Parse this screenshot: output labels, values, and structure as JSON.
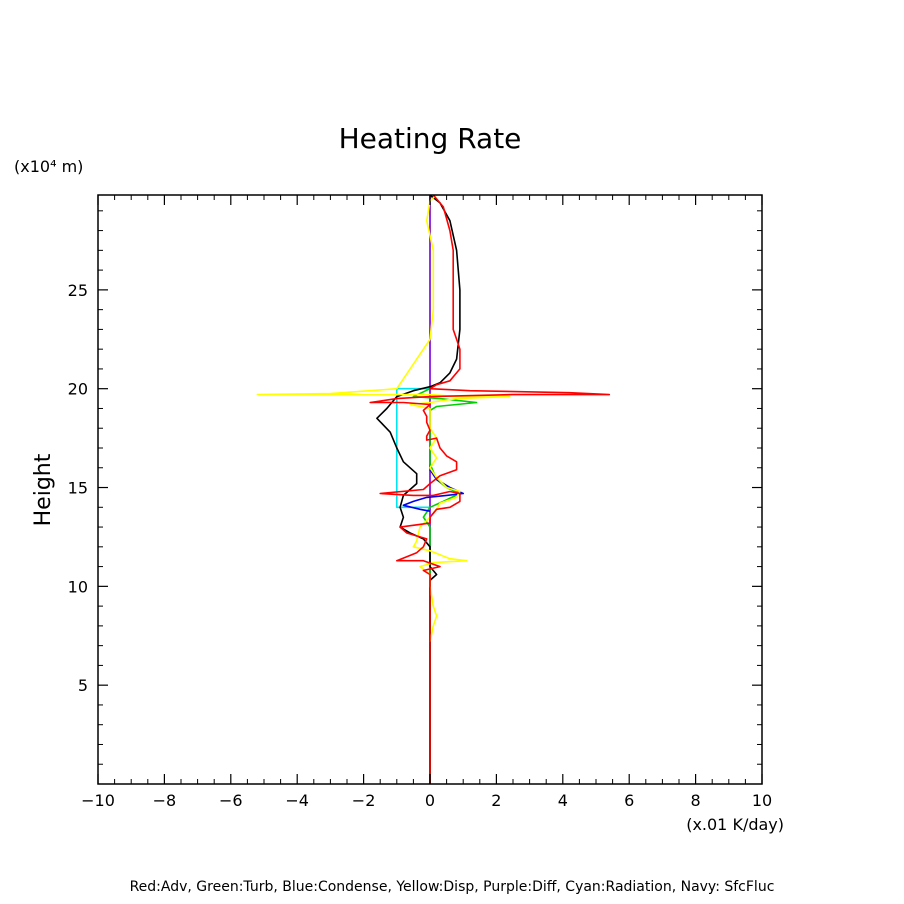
{
  "chart_data": {
    "type": "line",
    "title": "Heating Rate",
    "xlabel": "(x.01 K/day)",
    "ylabel": "Height",
    "yunit_label": "(x10⁴ m)",
    "caption": "Red:Adv, Green:Turb, Blue:Condense, Yellow:Disp, Purple:Diff, Cyan:Radiation, Navy: SfcFluc",
    "xlim": [
      -10,
      10
    ],
    "ylim": [
      0,
      29.8
    ],
    "xticks": [
      -10,
      -8,
      -6,
      -4,
      -2,
      0,
      2,
      4,
      6,
      8,
      10
    ],
    "xtick_labels": [
      "−10",
      "−8",
      "−6",
      "−4",
      "−2",
      "0",
      "2",
      "4",
      "6",
      "8",
      "10"
    ],
    "yticks": [
      5,
      10,
      15,
      20,
      25
    ],
    "ytick_labels": [
      "5",
      "10",
      "15",
      "20",
      "25"
    ],
    "grid": false,
    "series": [
      {
        "name": "Navy: SfcFluc",
        "color": "#000080",
        "points": [
          [
            0,
            0
          ],
          [
            0,
            29.8
          ]
        ]
      },
      {
        "name": "Purple:Diff",
        "color": "#a020f0",
        "points": [
          [
            0.05,
            29.8
          ],
          [
            0,
            29.6
          ],
          [
            0,
            0
          ]
        ]
      },
      {
        "name": "Cyan:Radiation",
        "color": "#00e5ee",
        "points": [
          [
            0,
            20
          ],
          [
            -1.0,
            20
          ],
          [
            -1.0,
            14.0
          ],
          [
            -0.3,
            14.0
          ],
          [
            0,
            14.0
          ]
        ]
      },
      {
        "name": "Green:Turb",
        "color": "#00d000",
        "points": [
          [
            0,
            20.0
          ],
          [
            -0.5,
            19.6
          ],
          [
            0.3,
            19.5
          ],
          [
            1.4,
            19.3
          ],
          [
            0.2,
            19.1
          ],
          [
            0,
            18.9
          ],
          [
            0,
            16.2
          ],
          [
            0.2,
            15.4
          ],
          [
            0.5,
            15.0
          ],
          [
            0.9,
            14.7
          ],
          [
            0.4,
            14.3
          ],
          [
            0.0,
            14.0
          ],
          [
            -0.2,
            13.5
          ],
          [
            0,
            13.0
          ],
          [
            0,
            0
          ]
        ]
      },
      {
        "name": "Blue:Condense",
        "color": "#0000ee",
        "points": [
          [
            0,
            15.9
          ],
          [
            0.2,
            15.4
          ],
          [
            0.6,
            15.0
          ],
          [
            1.0,
            14.7
          ],
          [
            0.5,
            14.6
          ],
          [
            -0.1,
            14.5
          ],
          [
            -0.5,
            14.3
          ],
          [
            -0.8,
            14.1
          ],
          [
            -0.3,
            13.9
          ],
          [
            0,
            13.8
          ]
        ]
      },
      {
        "name": "Black",
        "color": "#000000",
        "points": [
          [
            0,
            29.8
          ],
          [
            0.3,
            29.4
          ],
          [
            0.6,
            28.5
          ],
          [
            0.8,
            27.0
          ],
          [
            0.9,
            25.0
          ],
          [
            0.9,
            23.0
          ],
          [
            0.8,
            21.5
          ],
          [
            0.6,
            20.8
          ],
          [
            0.3,
            20.3
          ],
          [
            0,
            20.1
          ],
          [
            -0.5,
            19.9
          ],
          [
            -1.0,
            19.6
          ],
          [
            -1.3,
            19.0
          ],
          [
            -1.6,
            18.5
          ],
          [
            -1.2,
            17.8
          ],
          [
            -1.0,
            17.0
          ],
          [
            -0.8,
            16.3
          ],
          [
            -0.4,
            15.7
          ],
          [
            -0.4,
            15.2
          ],
          [
            -0.8,
            14.6
          ],
          [
            -0.9,
            14.0
          ],
          [
            -0.8,
            13.5
          ],
          [
            -0.9,
            13.0
          ],
          [
            -0.6,
            12.7
          ],
          [
            -0.2,
            12.4
          ],
          [
            0,
            12.0
          ],
          [
            0,
            11.0
          ],
          [
            0.2,
            10.6
          ],
          [
            0,
            10.3
          ],
          [
            0,
            0
          ]
        ]
      },
      {
        "name": "Yellow:Disp",
        "color": "#ffff00",
        "points": [
          [
            0.2,
            29.8
          ],
          [
            0,
            29.5
          ],
          [
            -0.1,
            28.5
          ],
          [
            0.1,
            27.0
          ],
          [
            0.1,
            25.0
          ],
          [
            0.1,
            24.0
          ],
          [
            0,
            22.5
          ],
          [
            -0.4,
            21.5
          ],
          [
            -0.8,
            20.5
          ],
          [
            -1.0,
            20.0
          ],
          [
            -3.0,
            19.75
          ],
          [
            -5.2,
            19.7
          ],
          [
            -2.5,
            19.7
          ],
          [
            0,
            19.7
          ],
          [
            0.8,
            19.6
          ],
          [
            2.4,
            19.6
          ],
          [
            0.8,
            19.5
          ],
          [
            0,
            19.3
          ],
          [
            -0.6,
            19.2
          ],
          [
            0,
            19.0
          ],
          [
            0,
            18.0
          ],
          [
            0.2,
            17.5
          ],
          [
            0,
            17.0
          ],
          [
            0.2,
            16.5
          ],
          [
            0,
            16.0
          ],
          [
            0.2,
            15.5
          ],
          [
            0.5,
            15.0
          ],
          [
            0.9,
            14.8
          ],
          [
            0.8,
            14.5
          ],
          [
            0.3,
            14.2
          ],
          [
            0.2,
            13.9
          ],
          [
            0,
            13.5
          ],
          [
            -0.3,
            13.0
          ],
          [
            -0.4,
            12.3
          ],
          [
            -0.5,
            12.0
          ],
          [
            0,
            11.8
          ],
          [
            0.6,
            11.4
          ],
          [
            1.1,
            11.3
          ],
          [
            0.1,
            11.2
          ],
          [
            -0.3,
            11.0
          ],
          [
            0,
            10.6
          ],
          [
            0,
            10.0
          ],
          [
            0.1,
            9.0
          ],
          [
            0.2,
            8.5
          ],
          [
            0.1,
            8.0
          ],
          [
            0,
            7.2
          ]
        ]
      },
      {
        "name": "Red:Adv",
        "color": "#ff0000",
        "points": [
          [
            0.1,
            29.8
          ],
          [
            0.4,
            29.2
          ],
          [
            0.6,
            28.0
          ],
          [
            0.7,
            27.0
          ],
          [
            0.7,
            25.5
          ],
          [
            0.7,
            24.0
          ],
          [
            0.7,
            23.0
          ],
          [
            0.8,
            22.5
          ],
          [
            0.9,
            22.0
          ],
          [
            0.9,
            21.0
          ],
          [
            0.6,
            20.4
          ],
          [
            0.2,
            20.2
          ],
          [
            0,
            20.0
          ],
          [
            1.2,
            19.9
          ],
          [
            4.2,
            19.8
          ],
          [
            5.4,
            19.7
          ],
          [
            2.5,
            19.7
          ],
          [
            0,
            19.6
          ],
          [
            -1.0,
            19.5
          ],
          [
            -1.8,
            19.3
          ],
          [
            -0.8,
            19.3
          ],
          [
            0,
            19.2
          ],
          [
            -0.2,
            18.9
          ],
          [
            -0.1,
            18.6
          ],
          [
            -0.1,
            18.3
          ],
          [
            0,
            17.9
          ],
          [
            -0.1,
            17.6
          ],
          [
            -0.1,
            17.4
          ],
          [
            0.2,
            17.5
          ],
          [
            0.3,
            17.0
          ],
          [
            0.5,
            16.6
          ],
          [
            0.8,
            16.3
          ],
          [
            0.8,
            15.9
          ],
          [
            0.3,
            15.6
          ],
          [
            0,
            15.2
          ],
          [
            -0.2,
            14.9
          ],
          [
            -1.5,
            14.7
          ],
          [
            -0.5,
            14.6
          ],
          [
            0.1,
            14.6
          ],
          [
            0.6,
            14.8
          ],
          [
            0.9,
            14.7
          ],
          [
            0.9,
            14.3
          ],
          [
            0.6,
            14.0
          ],
          [
            0.2,
            13.9
          ],
          [
            0,
            13.5
          ],
          [
            0,
            13.2
          ],
          [
            -0.9,
            13.0
          ],
          [
            -0.7,
            12.7
          ],
          [
            -0.3,
            12.5
          ],
          [
            -0.1,
            12.4
          ],
          [
            -0.2,
            12.0
          ],
          [
            -0.4,
            11.7
          ],
          [
            -1.0,
            11.3
          ],
          [
            -0.2,
            11.3
          ],
          [
            0.3,
            11.0
          ],
          [
            -0.2,
            10.8
          ],
          [
            0,
            10.6
          ],
          [
            0,
            0
          ]
        ]
      }
    ]
  }
}
